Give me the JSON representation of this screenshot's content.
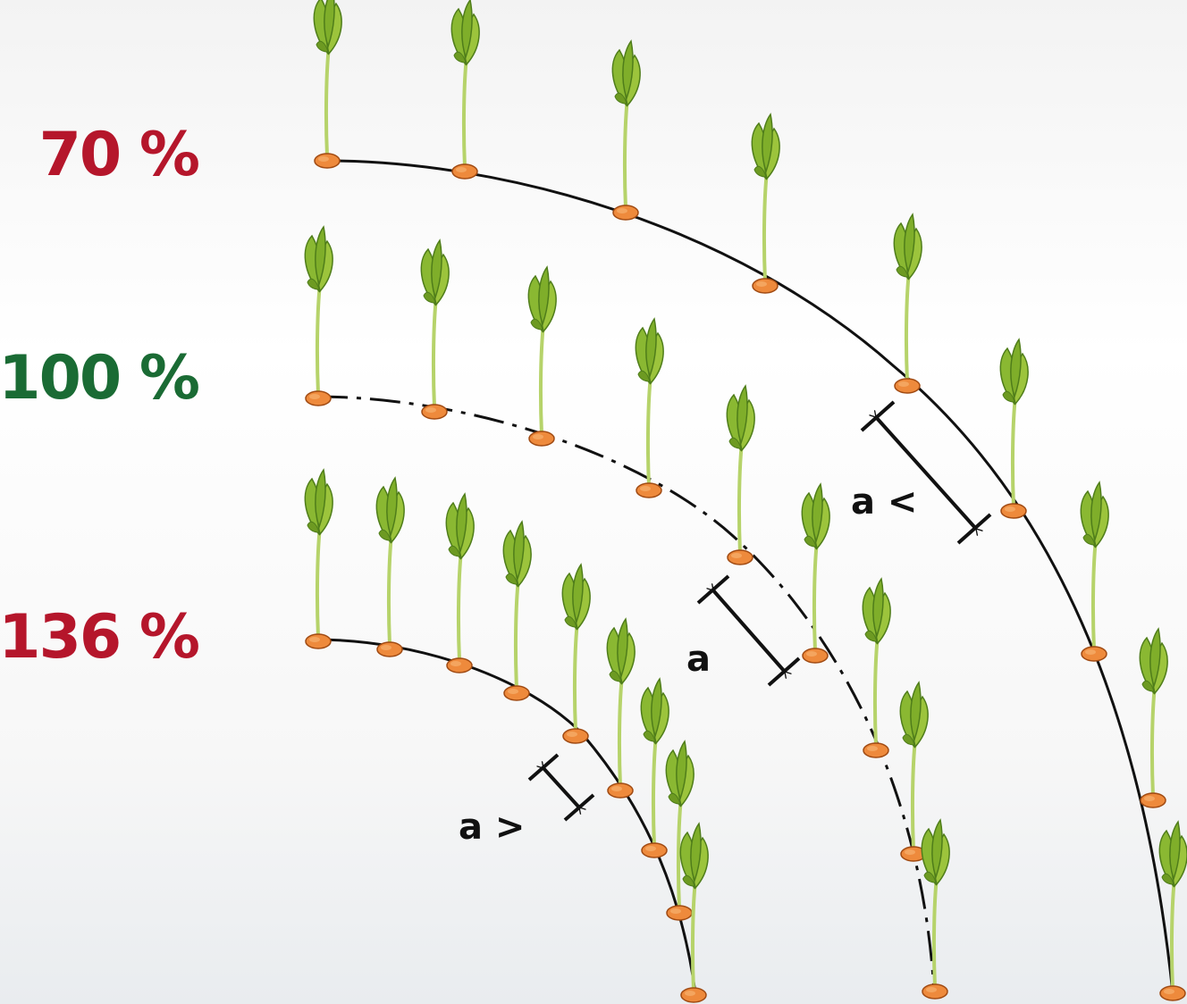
{
  "rows": [
    {
      "id": "70",
      "label": "70 %",
      "color": "#b5162b",
      "line": "solid"
    },
    {
      "id": "100",
      "label": "100 %",
      "color": "#1a6b34",
      "line": "dash-dot"
    },
    {
      "id": "136",
      "label": "136 %",
      "color": "#b5162b",
      "line": "solid"
    }
  ],
  "spacing": {
    "wide": "a <",
    "normal": "a",
    "narrow": "a >"
  },
  "colors": {
    "seed": "#ee8a3c",
    "seed_outline": "#a04a12",
    "leaf": "#8ab832",
    "leaf_dark": "#4f7d1a",
    "stem": "#b6d36a",
    "line": "#111111"
  }
}
